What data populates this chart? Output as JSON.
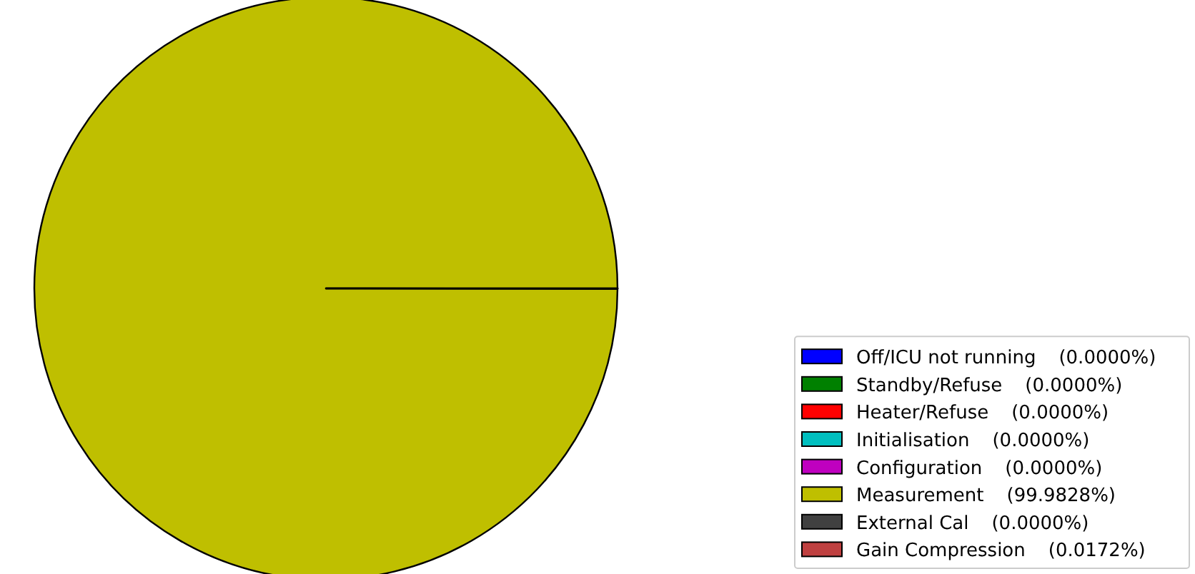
{
  "chart_data": {
    "type": "pie",
    "categories": [
      "Off/ICU not running",
      "Standby/Refuse",
      "Heater/Refuse",
      "Initialisation",
      "Configuration",
      "Measurement",
      "External Cal",
      "Gain Compression"
    ],
    "values": [
      0,
      0,
      0,
      0,
      0,
      99.9828,
      0,
      0.0172
    ],
    "value_labels": [
      "(0.0000%)",
      "(0.0000%)",
      "(0.0000%)",
      "(0.0000%)",
      "(0.0000%)",
      "(99.9828%)",
      "(0.0000%)",
      "(0.0172%)"
    ],
    "colors": [
      "#0000ff",
      "#008000",
      "#ff0000",
      "#00bfbf",
      "#bf00bf",
      "#bfbf00",
      "#404040",
      "#bf4040"
    ],
    "legend": "bottom right"
  }
}
